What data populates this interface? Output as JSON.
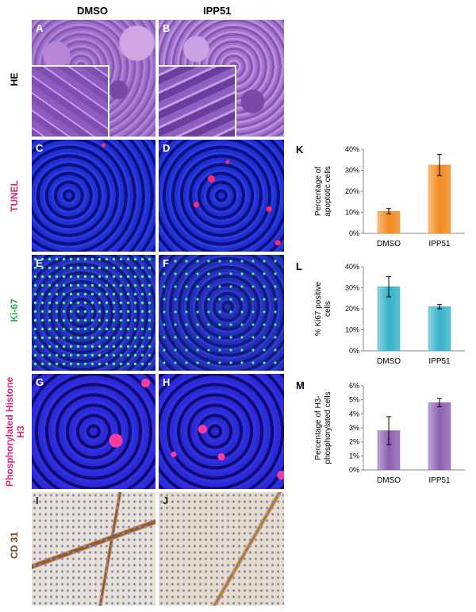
{
  "columns": [
    "DMSO",
    "IPP51"
  ],
  "rows": [
    {
      "label": "HE",
      "color": "#000000"
    },
    {
      "label": "TUNEL",
      "color": "#d6246e"
    },
    {
      "label": "Ki-67",
      "color": "#1fb34a"
    },
    {
      "label": "Phosphorylated Histone H3",
      "color": "#e0247a"
    },
    {
      "label": "CD 31",
      "color": "#7a4a1a"
    }
  ],
  "panels": [
    "A",
    "B",
    "C",
    "D",
    "E",
    "F",
    "G",
    "H",
    "I",
    "J"
  ],
  "chart_data": [
    {
      "type": "bar",
      "panel_letter": "K",
      "categories": [
        "DMSO",
        "IPP51"
      ],
      "values": [
        0.105,
        0.325
      ],
      "errors": [
        0.013,
        0.05
      ],
      "ylabel": "Percentage of apoptotic cells",
      "ylim": [
        0,
        0.4
      ],
      "yticks": [
        "0%",
        "10%",
        "20%",
        "30%",
        "40%"
      ],
      "color": "#f08a1c",
      "grid": false
    },
    {
      "type": "bar",
      "panel_letter": "L",
      "categories": [
        "DMSO",
        "IPP51"
      ],
      "values": [
        0.305,
        0.21
      ],
      "errors": [
        0.048,
        0.01
      ],
      "ylabel": "% Ki67 positive cells",
      "ylim": [
        0,
        0.4
      ],
      "yticks": [
        "0%",
        "10%",
        "20%",
        "30%",
        "40%"
      ],
      "color": "#35b3c8",
      "grid": false
    },
    {
      "type": "bar",
      "panel_letter": "M",
      "categories": [
        "DMSO",
        "IPP51"
      ],
      "values": [
        0.028,
        0.048
      ],
      "errors": [
        0.01,
        0.003
      ],
      "ylabel": "Percentage of H3-phosphorylated cells",
      "ylim": [
        0,
        0.06
      ],
      "yticks": [
        "0%",
        "1%",
        "2%",
        "3%",
        "4%",
        "5%",
        "6%"
      ],
      "color": "#8b5fb0",
      "grid": false
    }
  ]
}
